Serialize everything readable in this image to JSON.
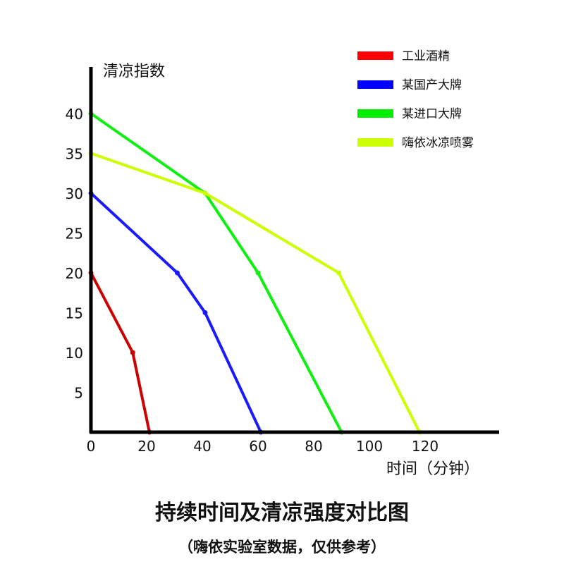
{
  "chart_data": {
    "type": "line",
    "title": "持续时间及清凉强度对比图",
    "subtitle": "（嗨依实验室数据，仅供参考）",
    "xlabel": "时间（分钟）",
    "ylabel": "清凉指数",
    "xlim": [
      0,
      150
    ],
    "ylim": [
      0,
      45
    ],
    "xticks": [
      0,
      20,
      40,
      60,
      80,
      100,
      120
    ],
    "yticks": [
      5,
      10,
      15,
      20,
      25,
      30,
      35,
      40
    ],
    "grid": false,
    "legend_position": "top-right",
    "series": [
      {
        "name": "工业酒精",
        "color": "#cc0000",
        "legend_color": "#ff0000",
        "x": [
          0,
          15,
          21
        ],
        "y": [
          20,
          10,
          0
        ]
      },
      {
        "name": "某国产大牌",
        "color": "#1a1aff",
        "legend_color": "#0000ff",
        "x": [
          0,
          31,
          41,
          61
        ],
        "y": [
          30,
          20,
          15,
          0
        ]
      },
      {
        "name": "某进口大牌",
        "color": "#11ee11",
        "legend_color": "#00ee00",
        "x": [
          0,
          41,
          60,
          90
        ],
        "y": [
          40,
          30,
          20,
          0
        ]
      },
      {
        "name": "嗨依冰凉喷雾",
        "color": "#ccff00",
        "legend_color": "#ccff00",
        "x": [
          0,
          41,
          89,
          118
        ],
        "y": [
          35,
          30,
          20,
          0
        ]
      }
    ]
  }
}
